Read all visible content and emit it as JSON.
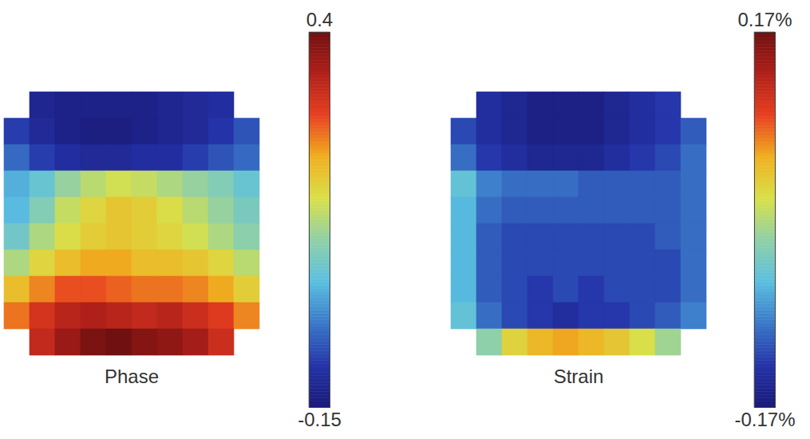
{
  "chart_data": [
    {
      "type": "heatmap",
      "title": "Phase",
      "tick_labels": false,
      "cells": [
        [
          null,
          -0.12,
          -0.13,
          -0.13,
          -0.13,
          -0.13,
          -0.12,
          -0.11,
          -0.1,
          null
        ],
        [
          -0.08,
          -0.11,
          -0.13,
          -0.14,
          -0.14,
          -0.13,
          -0.12,
          -0.11,
          -0.09,
          -0.06
        ],
        [
          -0.04,
          -0.08,
          -0.1,
          -0.11,
          -0.11,
          -0.1,
          -0.1,
          -0.08,
          -0.06,
          -0.04
        ],
        [
          0.02,
          0.05,
          0.1,
          0.13,
          0.15,
          0.14,
          0.12,
          0.1,
          0.08,
          0.05
        ],
        [
          0.03,
          0.08,
          0.14,
          0.17,
          0.19,
          0.18,
          0.16,
          0.13,
          0.1,
          0.07
        ],
        [
          0.06,
          0.12,
          0.16,
          0.18,
          0.19,
          0.18,
          0.17,
          0.15,
          0.12,
          0.09
        ],
        [
          0.12,
          0.17,
          0.2,
          0.22,
          0.22,
          0.2,
          0.2,
          0.19,
          0.17,
          0.13
        ],
        [
          0.2,
          0.24,
          0.27,
          0.27,
          0.26,
          0.25,
          0.25,
          0.24,
          0.22,
          0.18
        ],
        [
          0.25,
          0.3,
          0.33,
          0.34,
          0.33,
          0.32,
          0.33,
          0.31,
          0.29,
          0.24
        ],
        [
          null,
          0.32,
          0.36,
          0.39,
          0.4,
          0.38,
          0.37,
          0.35,
          0.31,
          null
        ]
      ],
      "colorbar": {
        "range": [
          -0.15,
          0.4
        ],
        "ticks": [
          -0.15,
          0.4
        ]
      }
    },
    {
      "type": "heatmap",
      "title": "Strain",
      "tick_labels": false,
      "cells": [
        [
          null,
          -0.14,
          -0.15,
          -0.16,
          -0.16,
          -0.16,
          -0.15,
          -0.14,
          -0.13,
          null
        ],
        [
          -0.12,
          -0.14,
          -0.15,
          -0.16,
          -0.16,
          -0.16,
          -0.15,
          -0.14,
          -0.13,
          -0.11
        ],
        [
          -0.1,
          -0.13,
          -0.14,
          -0.15,
          -0.15,
          -0.15,
          -0.14,
          -0.13,
          -0.12,
          -0.1
        ],
        [
          -0.05,
          -0.09,
          -0.1,
          -0.1,
          -0.1,
          -0.11,
          -0.11,
          -0.11,
          -0.11,
          -0.1
        ],
        [
          -0.06,
          -0.1,
          -0.11,
          -0.11,
          -0.11,
          -0.11,
          -0.11,
          -0.11,
          -0.11,
          -0.1
        ],
        [
          -0.06,
          -0.11,
          -0.12,
          -0.12,
          -0.12,
          -0.12,
          -0.12,
          -0.12,
          -0.11,
          -0.1
        ],
        [
          -0.06,
          -0.11,
          -0.12,
          -0.12,
          -0.12,
          -0.12,
          -0.12,
          -0.12,
          -0.12,
          -0.1
        ],
        [
          -0.06,
          -0.11,
          -0.12,
          -0.13,
          -0.12,
          -0.13,
          -0.12,
          -0.12,
          -0.12,
          -0.1
        ],
        [
          -0.05,
          -0.1,
          -0.12,
          -0.13,
          -0.14,
          -0.13,
          -0.13,
          -0.12,
          -0.11,
          -0.09
        ],
        [
          null,
          -0.02,
          0.03,
          0.05,
          0.06,
          0.05,
          0.04,
          0.02,
          -0.01,
          null
        ]
      ],
      "colorbar": {
        "range": [
          -0.17,
          0.17
        ],
        "ticks": [
          {
            "value": -0.17,
            "label": "-0.17%"
          },
          {
            "value": 0.17,
            "label": "0.17%"
          }
        ]
      }
    }
  ]
}
